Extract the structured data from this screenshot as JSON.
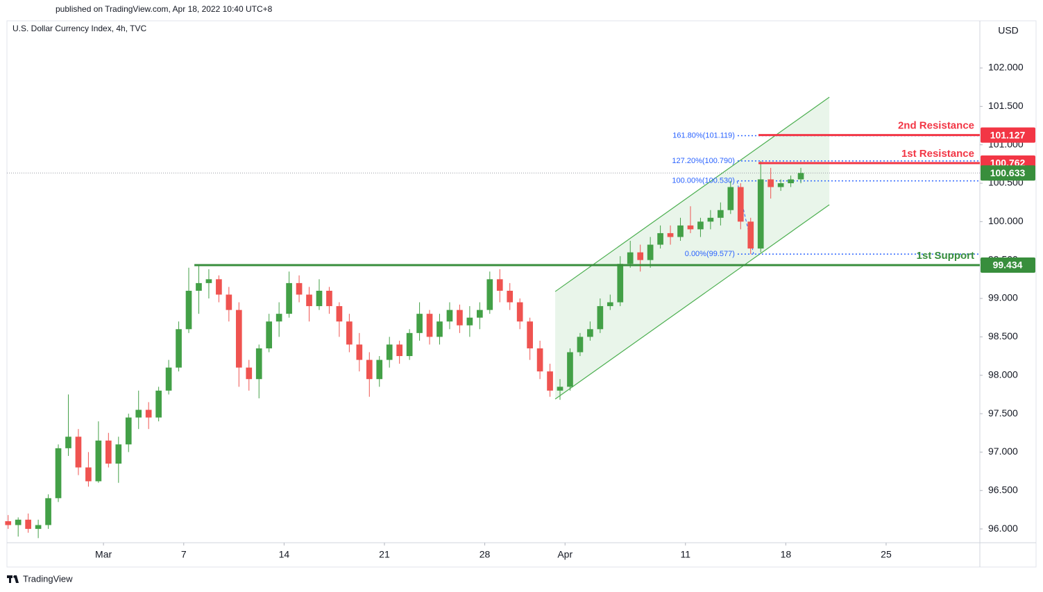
{
  "chart_data": {
    "type": "candlestick",
    "header": "published on TradingView.com, Apr 18, 2022 10:40 UTC+8",
    "title": "U.S. Dollar Currency Index, 4h, TVC",
    "currency": "USD",
    "brand": "TradingView",
    "up_color": "#43a047",
    "down_color": "#ef5350",
    "grid": false,
    "xlim": [
      0.19,
      48.67
    ],
    "ylim": [
      95.82,
      102.614
    ],
    "xticks": [
      {
        "value": 5,
        "label": "Mar"
      },
      {
        "value": 9,
        "label": "7"
      },
      14,
      {
        "value": 19,
        "label": "21"
      },
      {
        "value": 24,
        "label": "28"
      },
      {
        "value": 28,
        "label": "Apr"
      },
      {
        "value": 34,
        "label": "11"
      },
      {
        "value": 39,
        "label": "18"
      },
      {
        "value": 44,
        "label": "25"
      }
    ],
    "yticks": [
      {
        "value": 96,
        "label": "96.000"
      },
      {
        "value": 96.5,
        "label": "96.500"
      },
      {
        "value": 97,
        "label": "97.000"
      },
      {
        "value": 97.5,
        "label": "97.500"
      },
      {
        "value": 98,
        "label": "98.000"
      },
      {
        "value": 98.5,
        "label": "98.500"
      },
      {
        "value": 99,
        "label": "99.000"
      },
      {
        "value": 99.5,
        "label": "99.500"
      },
      {
        "value": 100,
        "label": "100.000"
      },
      {
        "value": 100.5,
        "label": "100.500"
      },
      {
        "value": 101,
        "label": "101.000"
      },
      {
        "value": 101.5,
        "label": "101.500"
      },
      {
        "value": 102,
        "label": "102.000"
      }
    ],
    "x": [
      0.25,
      0.75,
      1.25,
      1.75,
      2.25,
      2.75,
      3.25,
      3.75,
      4.25,
      4.75,
      5.25,
      5.75,
      6.25,
      6.75,
      7.25,
      7.75,
      8.25,
      8.75,
      9.25,
      9.75,
      10.25,
      10.75,
      11.25,
      11.75,
      12.25,
      12.75,
      13.25,
      13.75,
      14.25,
      14.75,
      15.25,
      15.75,
      16.25,
      16.75,
      17.25,
      17.75,
      18.25,
      18.75,
      19.25,
      19.75,
      20.25,
      20.75,
      21.25,
      21.75,
      22.25,
      22.75,
      23.25,
      23.75,
      24.25,
      24.75,
      25.25,
      25.75,
      26.25,
      26.75,
      27.25,
      27.75,
      28.25,
      28.75,
      29.25,
      29.75,
      30.25,
      30.75,
      31.25,
      31.75,
      32.25,
      32.75,
      33.25,
      33.75,
      34.25,
      34.75,
      35.25,
      35.75,
      36.25,
      36.75,
      37.25,
      37.75,
      38.25,
      38.75,
      39.25,
      39.75
    ],
    "open": [
      96.1,
      96.05,
      96.12,
      96.0,
      96.05,
      96.4,
      97.05,
      97.2,
      96.8,
      96.62,
      97.15,
      96.85,
      97.1,
      97.45,
      97.55,
      97.45,
      97.8,
      98.1,
      98.6,
      99.1,
      99.2,
      99.25,
      99.05,
      98.85,
      98.1,
      97.95,
      98.35,
      98.7,
      98.8,
      99.2,
      99.05,
      98.9,
      99.1,
      98.9,
      98.7,
      98.4,
      98.2,
      97.95,
      98.2,
      98.4,
      98.25,
      98.55,
      98.8,
      98.5,
      98.7,
      98.85,
      98.65,
      98.75,
      98.85,
      99.25,
      99.1,
      98.95,
      98.7,
      98.35,
      98.05,
      97.8,
      97.85,
      98.3,
      98.5,
      98.6,
      98.9,
      98.95,
      99.45,
      99.6,
      99.5,
      99.7,
      99.85,
      99.8,
      99.95,
      99.9,
      100.0,
      100.05,
      100.15,
      100.45,
      100.0,
      99.65,
      100.55,
      100.45,
      100.5,
      100.55
    ],
    "high": [
      96.18,
      96.15,
      96.2,
      96.12,
      96.45,
      97.1,
      97.75,
      97.3,
      97.0,
      97.4,
      97.25,
      97.2,
      97.5,
      97.8,
      97.65,
      97.85,
      98.2,
      98.7,
      99.4,
      99.42,
      99.38,
      99.3,
      99.15,
      98.95,
      98.2,
      98.4,
      98.8,
      98.95,
      99.35,
      99.3,
      99.15,
      99.25,
      99.15,
      98.95,
      98.8,
      98.55,
      98.3,
      98.25,
      98.5,
      98.45,
      98.6,
      98.95,
      98.85,
      98.8,
      98.95,
      98.92,
      98.9,
      98.95,
      99.35,
      99.38,
      99.2,
      99.0,
      98.75,
      98.45,
      98.15,
      97.95,
      98.35,
      98.55,
      98.7,
      99.0,
      99.05,
      99.55,
      99.75,
      99.7,
      99.8,
      99.95,
      99.95,
      100.05,
      100.2,
      100.05,
      100.15,
      100.25,
      100.53,
      100.5,
      100.05,
      100.79,
      100.7,
      100.55,
      100.6,
      100.7
    ],
    "low": [
      96.0,
      95.9,
      95.95,
      95.88,
      96.0,
      96.35,
      96.95,
      96.7,
      96.55,
      96.6,
      96.8,
      96.6,
      97.0,
      97.3,
      97.3,
      97.4,
      97.75,
      98.05,
      98.55,
      98.8,
      99.0,
      98.95,
      98.7,
      97.85,
      97.8,
      97.7,
      98.3,
      98.5,
      98.75,
      98.95,
      98.7,
      98.85,
      98.8,
      98.5,
      98.3,
      98.05,
      97.72,
      97.85,
      98.1,
      98.15,
      98.2,
      98.45,
      98.4,
      98.4,
      98.6,
      98.55,
      98.5,
      98.6,
      98.8,
      98.95,
      98.85,
      98.6,
      98.2,
      97.95,
      97.72,
      97.68,
      97.8,
      98.25,
      98.45,
      98.55,
      98.85,
      98.9,
      99.4,
      99.35,
      99.4,
      99.65,
      99.7,
      99.75,
      99.85,
      99.8,
      99.9,
      99.95,
      100.1,
      99.9,
      99.577,
      99.6,
      100.3,
      100.4,
      100.45,
      100.5
    ],
    "close": [
      96.05,
      96.12,
      96.0,
      96.05,
      96.4,
      97.05,
      97.2,
      96.8,
      96.62,
      97.15,
      96.85,
      97.1,
      97.45,
      97.55,
      97.45,
      97.8,
      98.1,
      98.6,
      99.1,
      99.2,
      99.25,
      99.05,
      98.85,
      98.1,
      97.95,
      98.35,
      98.7,
      98.8,
      99.2,
      99.05,
      98.9,
      99.1,
      98.9,
      98.7,
      98.4,
      98.2,
      97.95,
      98.2,
      98.4,
      98.25,
      98.55,
      98.8,
      98.5,
      98.7,
      98.85,
      98.65,
      98.75,
      98.85,
      99.25,
      99.1,
      98.95,
      98.7,
      98.35,
      98.05,
      97.8,
      97.85,
      98.3,
      98.5,
      98.6,
      98.9,
      98.95,
      99.45,
      99.6,
      99.5,
      99.7,
      99.85,
      99.8,
      99.95,
      99.9,
      100.0,
      100.05,
      100.15,
      100.45,
      100.0,
      99.65,
      100.55,
      100.45,
      100.5,
      100.55,
      100.633
    ],
    "channel": {
      "color": "#4caf50",
      "lower": [
        [
          27.51,
          97.69
        ],
        [
          41.17,
          100.22
        ]
      ],
      "upper": [
        [
          27.51,
          99.09
        ],
        [
          41.17,
          101.62
        ]
      ]
    },
    "fib": {
      "color": "#2962ff",
      "x_start": 36.6,
      "anchor": [
        [
          36.57,
          100.53
        ],
        [
          37.4,
          99.577
        ]
      ],
      "levels": [
        {
          "value": 101.119,
          "label": "161.80%(101.119)"
        },
        {
          "value": 100.79,
          "label": "127.20%(100.790)"
        },
        {
          "value": 100.53,
          "label": "100.00%(100.530)"
        },
        {
          "value": 99.577,
          "label": "0.00%(99.577)"
        }
      ]
    },
    "levels": [
      {
        "name": "2nd Resistance",
        "value": 101.127,
        "color": "#f23645",
        "x_start": 37.64
      },
      {
        "name": "1st Resistance",
        "value": 100.762,
        "color": "#f23645",
        "x_start": 37.64
      },
      {
        "name": "1st Support",
        "value": 99.434,
        "color": "#388e3c",
        "x_start": 9.53
      }
    ],
    "last_price": {
      "value": 100.633,
      "color": "#388e3c"
    }
  }
}
